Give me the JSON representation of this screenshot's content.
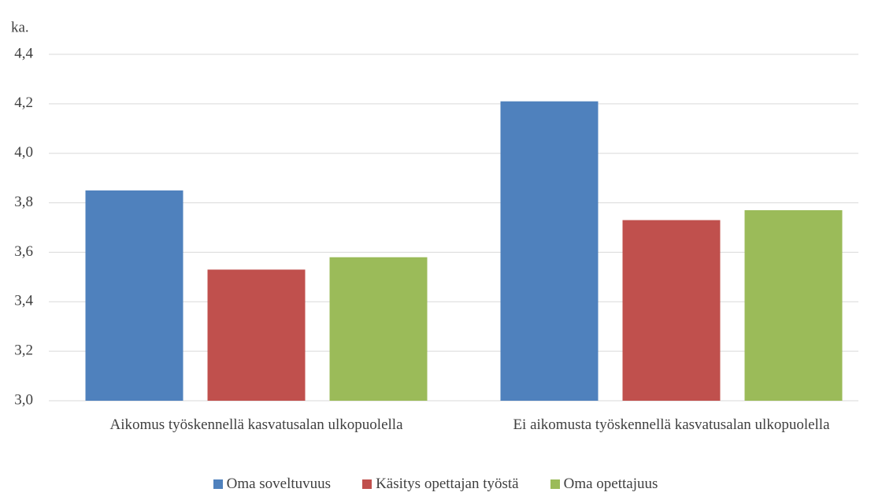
{
  "chart_data": {
    "type": "bar",
    "y_label": "ka.",
    "categories": [
      "Aikomus työskennellä kasvatusalan ulkopuolella",
      "Ei aikomusta työskennellä kasvatusalan ulkopuolella"
    ],
    "series": [
      {
        "name": "Oma soveltuvuus",
        "color": "#4f81bd",
        "values": [
          3.85,
          4.21
        ]
      },
      {
        "name": "Käsitys opettajan työstä",
        "color": "#c0504d",
        "values": [
          3.53,
          3.73
        ]
      },
      {
        "name": "Oma opettajuus",
        "color": "#9bbb59",
        "values": [
          3.58,
          3.77
        ]
      }
    ],
    "ylim": [
      3.0,
      4.4
    ],
    "yticks": [
      {
        "value": 3.0,
        "label": "3,0"
      },
      {
        "value": 3.2,
        "label": "3,2"
      },
      {
        "value": 3.4,
        "label": "3,4"
      },
      {
        "value": 3.6,
        "label": "3,6"
      },
      {
        "value": 3.8,
        "label": "3,8"
      },
      {
        "value": 4.0,
        "label": "4,0"
      },
      {
        "value": 4.2,
        "label": "4,2"
      },
      {
        "value": 4.4,
        "label": "4,4"
      }
    ],
    "grid": true,
    "legend": "bottom"
  }
}
